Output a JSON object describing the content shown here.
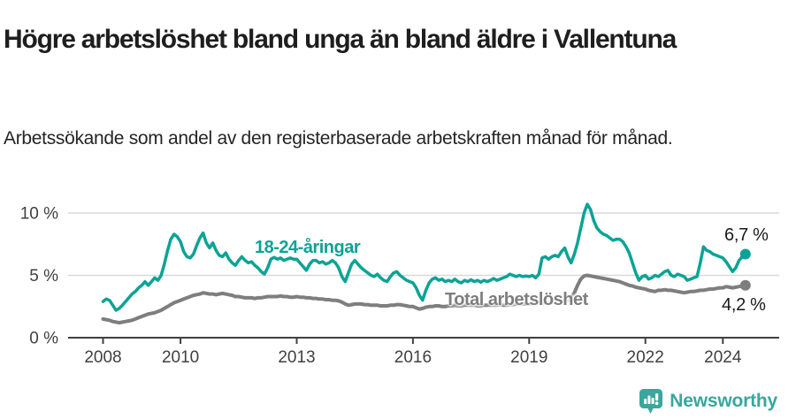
{
  "branding": {
    "name": "Newsworthy",
    "icon": "newsworthy-bubble-barchart-icon",
    "color": "#3aa69d"
  },
  "chart_data": {
    "type": "line",
    "title": "Högre arbetslöshet bland unga än bland äldre i Vallentuna",
    "subtitle": "Arbetssökande som andel av den registerbaserade arbetskraften månad för månad.",
    "x_unit": "monthly observations, decimal years",
    "xlim": [
      2007.1,
      2025.45
    ],
    "ylim": [
      0,
      10.7
    ],
    "grid": "horizontal",
    "legend_position": "inline-labels-on-lines",
    "x_ticks": [
      2008,
      2010,
      2013,
      2016,
      2019,
      2022,
      2024
    ],
    "y_ticks": [
      {
        "value": 0,
        "label": "0 %"
      },
      {
        "value": 5,
        "label": "5 %"
      },
      {
        "value": 10,
        "label": "10 %"
      }
    ],
    "axis_color": "#404040",
    "gridline_color": "#d9d9d9",
    "series": [
      {
        "name": "18-24-åringar",
        "color": "#0ba396",
        "end_label": "6,7 %",
        "last_value": 6.7,
        "start_year": 2008,
        "frequency": "monthly",
        "values": [
          2.9,
          3.1,
          3.0,
          2.6,
          2.2,
          2.35,
          2.6,
          2.9,
          3.2,
          3.5,
          3.7,
          4.0,
          4.2,
          4.5,
          4.2,
          4.5,
          4.8,
          4.6,
          5.0,
          5.9,
          7.0,
          7.9,
          8.3,
          8.1,
          7.7,
          6.9,
          6.5,
          6.4,
          6.7,
          7.4,
          8.0,
          8.4,
          7.6,
          7.2,
          7.6,
          7.0,
          6.6,
          6.5,
          6.8,
          6.3,
          6.0,
          5.8,
          6.2,
          6.5,
          6.2,
          6.0,
          6.1,
          5.8,
          5.6,
          5.3,
          5.1,
          5.6,
          6.3,
          6.45,
          6.3,
          6.4,
          6.2,
          6.3,
          6.4,
          6.3,
          6.3,
          6.0,
          5.7,
          5.4,
          5.9,
          6.2,
          6.2,
          6.0,
          6.1,
          5.9,
          6.0,
          6.2,
          6.0,
          5.6,
          4.9,
          4.5,
          5.2,
          5.9,
          6.2,
          5.9,
          5.6,
          5.4,
          5.2,
          5.0,
          4.9,
          5.1,
          4.8,
          4.6,
          4.5,
          4.9,
          5.2,
          5.3,
          5.0,
          4.8,
          4.6,
          4.5,
          4.4,
          4.0,
          3.4,
          3.0,
          3.8,
          4.4,
          4.7,
          4.8,
          4.6,
          4.7,
          4.5,
          4.6,
          4.5,
          4.7,
          4.5,
          4.4,
          4.6,
          4.5,
          4.65,
          4.5,
          4.6,
          4.45,
          4.6,
          4.5,
          4.6,
          4.75,
          4.6,
          4.7,
          4.8,
          4.9,
          5.1,
          5.0,
          4.9,
          5.0,
          4.9,
          4.95,
          4.9,
          5.0,
          4.8,
          5.1,
          6.4,
          6.5,
          6.3,
          6.5,
          6.6,
          6.5,
          6.9,
          7.2,
          6.5,
          6.0,
          6.7,
          7.6,
          8.8,
          10.0,
          10.7,
          10.3,
          9.4,
          8.8,
          8.5,
          8.3,
          8.2,
          8.0,
          7.8,
          7.9,
          7.9,
          7.7,
          7.3,
          6.8,
          6.0,
          5.2,
          4.6,
          4.9,
          5.0,
          4.7,
          4.8,
          5.0,
          4.9,
          5.1,
          5.3,
          5.4,
          5.0,
          4.9,
          5.1,
          5.0,
          4.9,
          4.6,
          4.7,
          4.8,
          4.9,
          6.0,
          7.3,
          7.0,
          6.9,
          6.7,
          6.6,
          6.5,
          6.4,
          6.1,
          5.7,
          5.3,
          5.6,
          6.2,
          6.5,
          6.7
        ]
      },
      {
        "name": "Total arbetslöshet",
        "color": "#7e7e7e",
        "end_label": "4,2 %",
        "last_value": 4.2,
        "start_year": 2008,
        "frequency": "monthly",
        "values": [
          1.5,
          1.45,
          1.4,
          1.3,
          1.25,
          1.2,
          1.25,
          1.3,
          1.35,
          1.4,
          1.5,
          1.6,
          1.7,
          1.8,
          1.9,
          1.95,
          2.0,
          2.1,
          2.2,
          2.35,
          2.5,
          2.65,
          2.8,
          2.9,
          3.0,
          3.1,
          3.2,
          3.3,
          3.4,
          3.45,
          3.5,
          3.6,
          3.55,
          3.5,
          3.5,
          3.45,
          3.5,
          3.55,
          3.5,
          3.45,
          3.4,
          3.3,
          3.3,
          3.25,
          3.2,
          3.2,
          3.2,
          3.15,
          3.2,
          3.2,
          3.25,
          3.3,
          3.3,
          3.3,
          3.3,
          3.35,
          3.3,
          3.3,
          3.25,
          3.25,
          3.3,
          3.25,
          3.25,
          3.2,
          3.2,
          3.15,
          3.15,
          3.1,
          3.1,
          3.05,
          3.05,
          3.0,
          3.0,
          2.95,
          2.85,
          2.7,
          2.6,
          2.65,
          2.7,
          2.7,
          2.7,
          2.65,
          2.65,
          2.6,
          2.6,
          2.6,
          2.55,
          2.55,
          2.55,
          2.6,
          2.6,
          2.65,
          2.65,
          2.6,
          2.55,
          2.5,
          2.5,
          2.4,
          2.3,
          2.35,
          2.45,
          2.5,
          2.5,
          2.55,
          2.55,
          2.5,
          2.5,
          2.55,
          2.55,
          2.6,
          2.55,
          2.55,
          2.6,
          2.6,
          2.6,
          2.6,
          2.55,
          2.55,
          2.6,
          2.6,
          2.6,
          2.6,
          2.6,
          2.65,
          2.6,
          2.6,
          2.65,
          2.65,
          2.7,
          2.7,
          2.7,
          2.7,
          2.7,
          2.75,
          2.75,
          2.8,
          2.8,
          2.8,
          2.8,
          2.85,
          2.85,
          2.9,
          2.9,
          2.95,
          3.0,
          3.2,
          3.6,
          4.2,
          4.7,
          4.95,
          5.0,
          4.95,
          4.9,
          4.85,
          4.8,
          4.75,
          4.7,
          4.65,
          4.6,
          4.55,
          4.5,
          4.4,
          4.3,
          4.2,
          4.15,
          4.05,
          4.0,
          3.95,
          3.9,
          3.8,
          3.75,
          3.7,
          3.8,
          3.8,
          3.85,
          3.8,
          3.8,
          3.75,
          3.7,
          3.65,
          3.6,
          3.65,
          3.7,
          3.7,
          3.75,
          3.8,
          3.8,
          3.85,
          3.9,
          3.9,
          3.95,
          4.0,
          4.0,
          4.1,
          4.05,
          4.0,
          4.05,
          4.1,
          4.15,
          4.2
        ]
      }
    ]
  }
}
